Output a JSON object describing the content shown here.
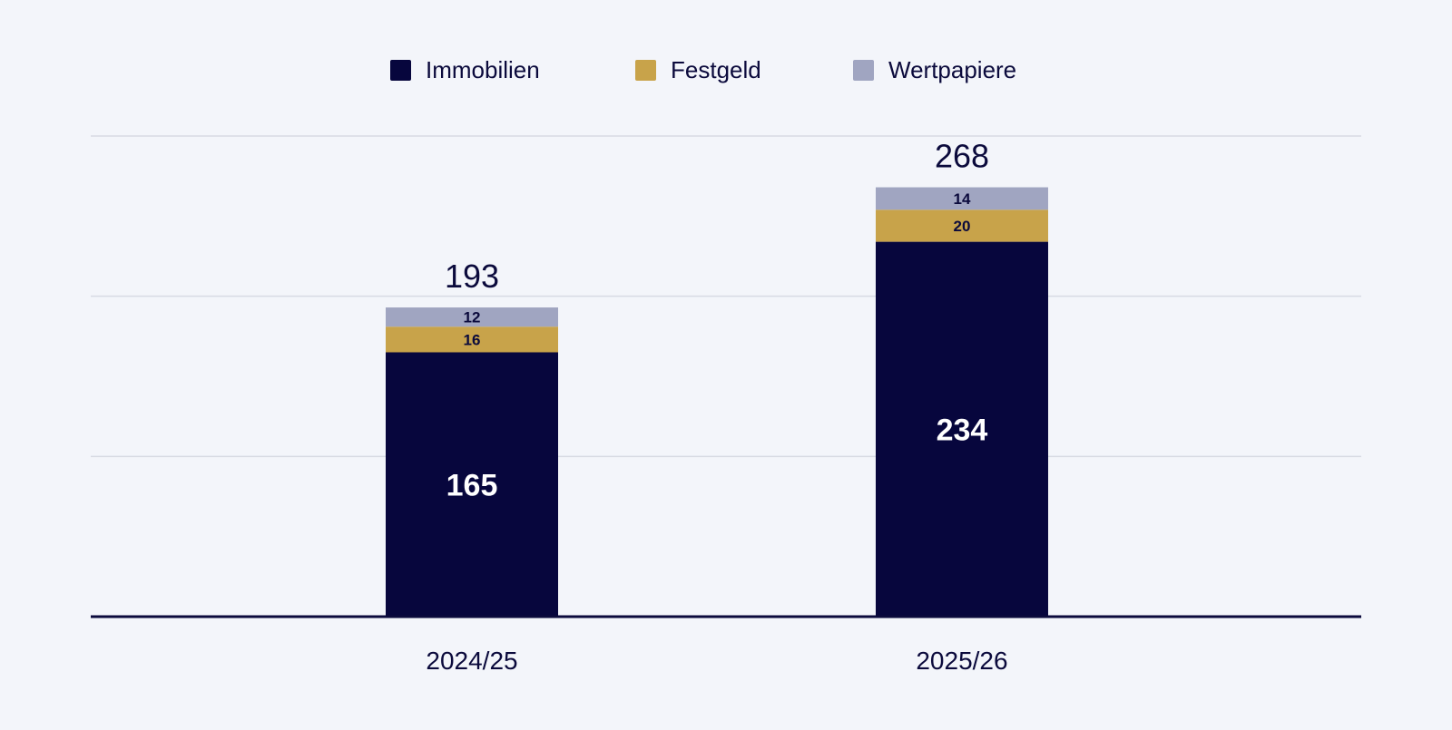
{
  "chart_data": {
    "type": "bar",
    "stacked": true,
    "title": "",
    "xlabel": "",
    "ylabel": "",
    "ylim": [
      0,
      300
    ],
    "grid": true,
    "legend_position": "top-center",
    "categories": [
      "2024/25",
      "2025/26"
    ],
    "series": [
      {
        "name": "Immobilien",
        "color": "#07063d",
        "values": [
          165,
          234
        ]
      },
      {
        "name": "Festgeld",
        "color": "#c8a34a",
        "values": [
          16,
          20
        ]
      },
      {
        "name": "Wertpapiere",
        "color": "#a0a5c1",
        "values": [
          12,
          14
        ]
      }
    ],
    "totals": [
      193,
      268
    ]
  }
}
